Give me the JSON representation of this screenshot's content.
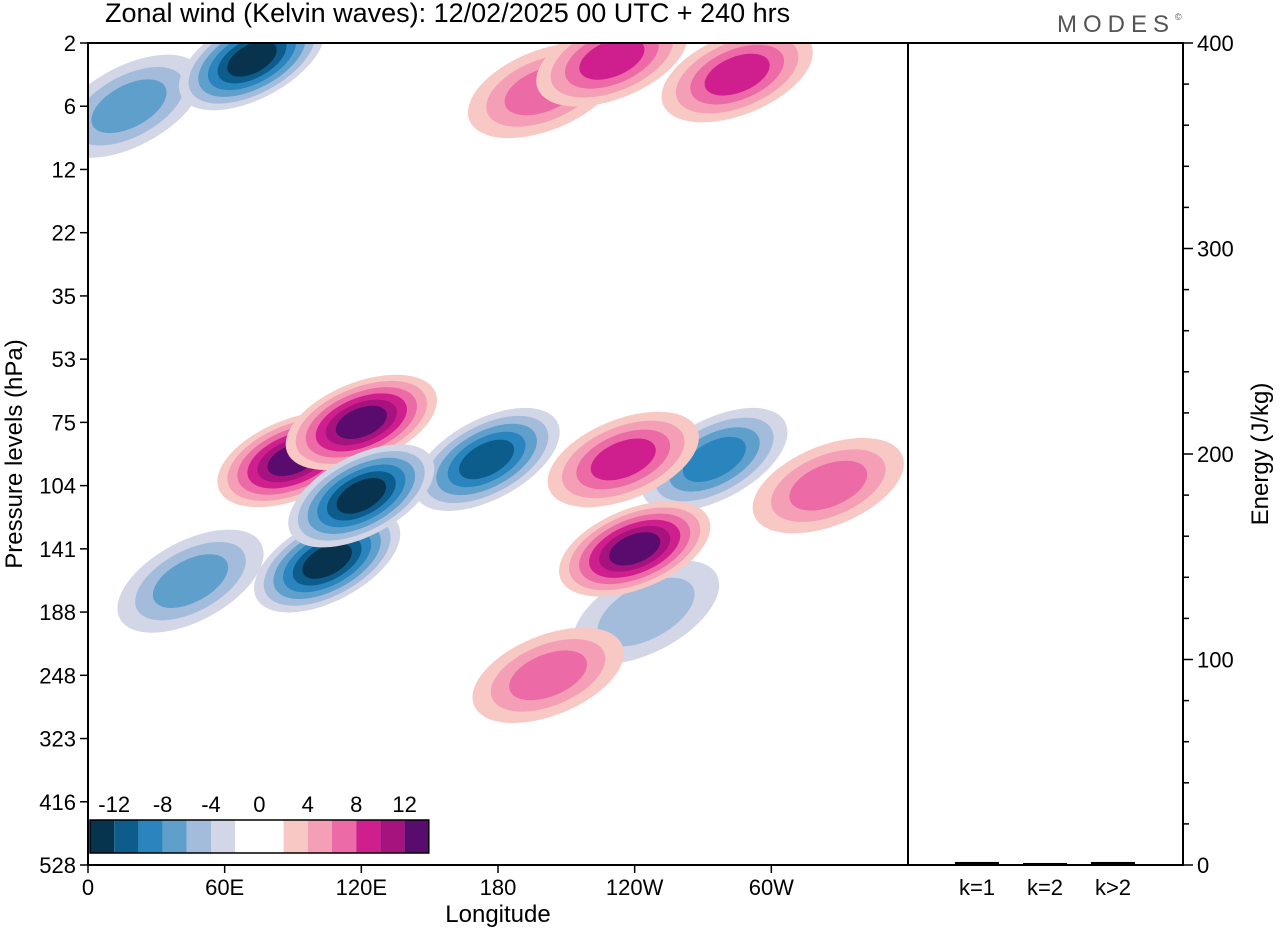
{
  "title": "Zonal wind (Kelvin waves):  12/02/2025  00 UTC  + 240 hrs",
  "brand": "MODES",
  "brand_mark": "©",
  "colors": {
    "neg": [
      "#08334f",
      "#0c5c8c",
      "#2a84bd",
      "#5f9fcb",
      "#a4bcdb",
      "#d2d6e6"
    ],
    "zero": "#ffffff",
    "pos": [
      "#f8c8c4",
      "#f59fb6",
      "#ec6aa6",
      "#cf1f8e",
      "#a6137e",
      "#5a0c6e"
    ]
  },
  "chart_data": [
    {
      "type": "heatmap",
      "title": "Zonal wind (Kelvin waves):  12/02/2025  00 UTC  + 240 hrs",
      "xlabel": "Longitude",
      "ylabel": "Pressure levels (hPa)",
      "x_ticks": [
        "0",
        "60E",
        "120E",
        "180",
        "120W",
        "60W"
      ],
      "x_tick_values": [
        0,
        60,
        120,
        180,
        240,
        300
      ],
      "xlim": [
        0,
        360
      ],
      "y_ticks": [
        "2",
        "6",
        "12",
        "22",
        "35",
        "53",
        "75",
        "104",
        "141",
        "188",
        "248",
        "323",
        "416",
        "528"
      ],
      "colorbar_labels": [
        "-12",
        "-8",
        "-4",
        "0",
        "4",
        "8",
        "12"
      ],
      "grid": false,
      "legend": "bottom-left colorbar",
      "features": [
        {
          "lon": 72,
          "p": 3,
          "v": -12
        },
        {
          "lon": 18,
          "p": 6,
          "v": -6
        },
        {
          "lon": 105,
          "p": 150,
          "v": -14
        },
        {
          "lon": 120,
          "p": 110,
          "v": -14
        },
        {
          "lon": 175,
          "p": 92,
          "v": -10
        },
        {
          "lon": 45,
          "p": 165,
          "v": -6
        },
        {
          "lon": 275,
          "p": 92,
          "v": -8
        },
        {
          "lon": 245,
          "p": 188,
          "v": -4
        },
        {
          "lon": 90,
          "p": 92,
          "v": 12
        },
        {
          "lon": 120,
          "p": 75,
          "v": 12
        },
        {
          "lon": 240,
          "p": 141,
          "v": 12
        },
        {
          "lon": 235,
          "p": 92,
          "v": 8
        },
        {
          "lon": 325,
          "p": 104,
          "v": 6
        },
        {
          "lon": 202,
          "p": 248,
          "v": 6
        },
        {
          "lon": 230,
          "p": 3,
          "v": 8
        },
        {
          "lon": 200,
          "p": 5,
          "v": 6
        },
        {
          "lon": 285,
          "p": 4,
          "v": 8
        }
      ]
    },
    {
      "type": "bar",
      "ylabel": "Energy (J/kg)",
      "categories": [
        "k=1",
        "k=2",
        "k>2"
      ],
      "values": [
        1,
        0.5,
        1
      ],
      "ylim": [
        0,
        400
      ],
      "y_ticks": [
        "0",
        "100",
        "200",
        "300",
        "400"
      ]
    }
  ]
}
